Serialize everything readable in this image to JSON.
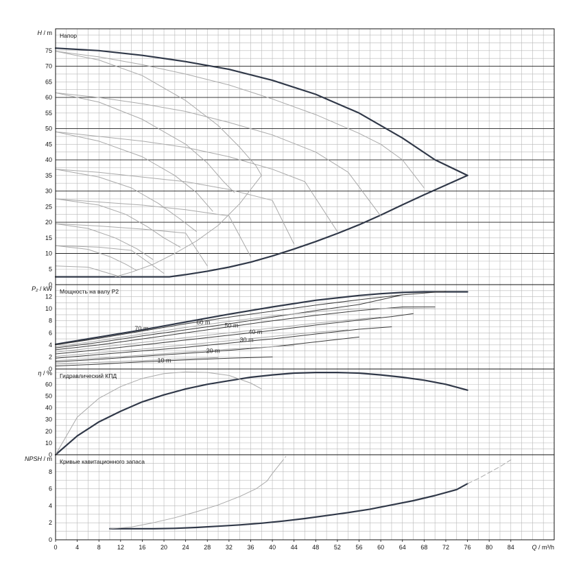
{
  "colors": {
    "grid": "#b8b8b8",
    "major": "#222222",
    "bold": "#303848",
    "thin": "#a9a9a9"
  },
  "chart_data": [
    {
      "id": "head",
      "type": "line",
      "title": "Напор",
      "ylabel_sym": "H",
      "ylabel_unit": "/ m",
      "ylim": [
        0,
        82
      ],
      "yticks": [
        0,
        5,
        10,
        15,
        20,
        25,
        30,
        35,
        40,
        45,
        50,
        55,
        60,
        65,
        70,
        75
      ],
      "major_y": [
        10,
        20,
        30,
        40,
        50,
        60,
        70
      ],
      "series": [
        {
          "style": "bold",
          "x": [
            0,
            8,
            16,
            24,
            32,
            40,
            48,
            56,
            64,
            70,
            76
          ],
          "y": [
            75.8,
            75,
            73.5,
            71.5,
            69,
            65.5,
            61,
            55,
            47,
            40,
            35
          ]
        },
        {
          "style": "bold",
          "x": [
            0,
            21,
            24,
            28,
            32,
            36,
            40,
            44,
            48,
            52,
            56,
            60,
            64,
            68,
            72,
            76
          ],
          "y": [
            2.5,
            2.5,
            3.2,
            4.3,
            5.6,
            7.2,
            9.2,
            11.4,
            13.8,
            16.4,
            19.2,
            22.3,
            25.6,
            28.8,
            31.9,
            35
          ]
        },
        {
          "style": "thin",
          "x": [
            0,
            8,
            16,
            24,
            32,
            40,
            48,
            56,
            60,
            64,
            68
          ],
          "y": [
            74.8,
            73,
            70.5,
            67.5,
            64,
            59.5,
            54.5,
            48.5,
            45,
            40,
            31
          ]
        },
        {
          "style": "thin",
          "x": [
            0,
            8,
            16,
            24,
            32,
            40,
            48,
            54,
            60
          ],
          "y": [
            61.5,
            60,
            58,
            55.5,
            52,
            48,
            42.5,
            36,
            22
          ]
        },
        {
          "style": "thin",
          "x": [
            0,
            8,
            16,
            24,
            32,
            40,
            46,
            52
          ],
          "y": [
            49,
            47.5,
            46,
            44,
            41,
            37,
            33,
            17
          ]
        },
        {
          "style": "thin",
          "x": [
            0,
            8,
            16,
            24,
            32,
            40,
            44
          ],
          "y": [
            37,
            36,
            34.5,
            33,
            30.5,
            27,
            13
          ]
        },
        {
          "style": "thin",
          "x": [
            0,
            8,
            16,
            24,
            32,
            36
          ],
          "y": [
            27.5,
            26.5,
            25.5,
            24,
            22,
            9
          ]
        },
        {
          "style": "thin",
          "x": [
            0,
            8,
            16,
            24,
            28
          ],
          "y": [
            19.5,
            18.8,
            17.8,
            16.5,
            6
          ]
        },
        {
          "style": "thin",
          "x": [
            0,
            8,
            14,
            20
          ],
          "y": [
            12.5,
            12,
            11,
            3.6
          ]
        },
        {
          "style": "thin",
          "x": [
            0,
            6,
            12
          ],
          "y": [
            6,
            5.6,
            2.5
          ]
        },
        {
          "style": "thin",
          "x": [
            0,
            8,
            16,
            24,
            30,
            34,
            37,
            38
          ],
          "y": [
            74.8,
            72,
            67,
            59,
            51,
            44,
            38,
            35
          ]
        },
        {
          "style": "thin",
          "x": [
            0,
            8,
            16,
            24,
            28,
            31,
            33
          ],
          "y": [
            61.5,
            58.5,
            53,
            45,
            39,
            33,
            29.5
          ]
        },
        {
          "style": "thin",
          "x": [
            0,
            8,
            16,
            22,
            26,
            29
          ],
          "y": [
            49,
            46,
            41,
            35,
            29.5,
            23.5
          ]
        },
        {
          "style": "thin",
          "x": [
            0,
            8,
            14,
            19,
            23,
            26
          ],
          "y": [
            37,
            34.5,
            31,
            26,
            21,
            17
          ]
        },
        {
          "style": "thin",
          "x": [
            0,
            8,
            13,
            17,
            20,
            23
          ],
          "y": [
            27.5,
            25.5,
            22.5,
            18.5,
            15,
            12
          ]
        },
        {
          "style": "thin",
          "x": [
            0,
            6,
            11,
            15,
            18
          ],
          "y": [
            19.5,
            18,
            15,
            11.5,
            8
          ]
        },
        {
          "style": "thin",
          "x": [
            0,
            6,
            10,
            13,
            15
          ],
          "y": [
            12.5,
            11.3,
            9,
            6.5,
            4.5
          ]
        },
        {
          "style": "thin",
          "x": [
            11,
            14,
            18,
            22,
            26,
            30,
            34,
            38
          ],
          "y": [
            2.5,
            4,
            6.5,
            10,
            14,
            19,
            26,
            35
          ]
        }
      ]
    },
    {
      "id": "power",
      "type": "line",
      "title": "Мощность на валу P2",
      "ylabel_sym": "P₂",
      "ylabel_unit": "/ kW",
      "ylim": [
        0,
        14
      ],
      "yticks": [
        0,
        2,
        4,
        6,
        8,
        10,
        12
      ],
      "major_y": [],
      "series": [
        {
          "style": "bold",
          "x": [
            0,
            8,
            16,
            24,
            32,
            40,
            48,
            56,
            60,
            64,
            68,
            72,
            76
          ],
          "y": [
            4.1,
            5.3,
            6.5,
            7.8,
            9.1,
            10.3,
            11.4,
            12.2,
            12.5,
            12.7,
            12.8,
            12.8,
            12.8
          ]
        },
        {
          "style": "dark",
          "x": [
            0,
            8,
            16,
            24,
            32,
            40,
            48,
            56,
            64,
            72
          ],
          "y": [
            4,
            5.1,
            6.3,
            7.5,
            8.6,
            9.6,
            10.6,
            11.5,
            12.3,
            12.9
          ]
        },
        {
          "style": "dark",
          "x": [
            0,
            8,
            16,
            24,
            32,
            40,
            48,
            56,
            64,
            70
          ],
          "y": [
            3.2,
            4,
            5,
            6,
            7,
            8,
            8.9,
            9.7,
            10.3,
            10.3
          ]
        },
        {
          "style": "dark",
          "x": [
            0,
            8,
            16,
            24,
            32,
            40,
            48,
            56,
            62,
            66
          ],
          "y": [
            2.5,
            3.2,
            4,
            4.8,
            5.6,
            6.4,
            7.3,
            8.1,
            8.7,
            9.2
          ]
        },
        {
          "style": "dark",
          "x": [
            0,
            8,
            16,
            24,
            32,
            40,
            48,
            56,
            62
          ],
          "y": [
            1.8,
            2.4,
            3,
            3.6,
            4.3,
            5,
            5.8,
            6.6,
            7
          ]
        },
        {
          "style": "dark",
          "x": [
            0,
            8,
            16,
            24,
            32,
            40,
            48,
            56
          ],
          "y": [
            1.2,
            1.6,
            2.1,
            2.6,
            3.1,
            3.7,
            4.5,
            5.3
          ]
        },
        {
          "style": "dark",
          "x": [
            0,
            8,
            16,
            24,
            32,
            40
          ],
          "y": [
            0.5,
            0.8,
            1.2,
            1.5,
            1.8,
            2
          ]
        },
        {
          "style": "dark",
          "x": [
            0,
            8,
            16,
            24,
            32,
            40,
            48,
            56,
            60,
            64
          ],
          "y": [
            3.5,
            4.4,
            5.5,
            6.5,
            7.5,
            8.6,
            9.7,
            10.7,
            11.5,
            12.3
          ]
        },
        {
          "style": "thin",
          "x": [
            0,
            8,
            16,
            24,
            32,
            40,
            48,
            56,
            64,
            70
          ],
          "y": [
            3.7,
            4.7,
            5.8,
            6.9,
            7.9,
            8.8,
            9.5,
            10,
            10.1,
            10
          ]
        },
        {
          "style": "thin",
          "x": [
            0,
            8,
            16,
            24,
            32,
            40,
            48,
            56,
            60
          ],
          "y": [
            2.8,
            3.6,
            4.4,
            5.2,
            6,
            6.8,
            7.6,
            8.3,
            8.6
          ]
        },
        {
          "style": "thin",
          "x": [
            0,
            8,
            16,
            24,
            32,
            40,
            48,
            54
          ],
          "y": [
            2.1,
            2.7,
            3.3,
            4,
            4.7,
            5.4,
            6.1,
            6.5
          ]
        },
        {
          "style": "thin",
          "x": [
            0,
            8,
            16,
            24,
            32,
            40,
            44
          ],
          "y": [
            1.4,
            1.8,
            2.3,
            2.8,
            3.3,
            3.7,
            3.9
          ]
        },
        {
          "style": "thin",
          "x": [
            0,
            8,
            16,
            24,
            30
          ],
          "y": [
            0.8,
            1.1,
            1.4,
            1.7,
            1.9
          ]
        }
      ],
      "labels": [
        {
          "text": "70 m",
          "x": 14.6,
          "y": 6.4
        },
        {
          "text": "60 m",
          "x": 26,
          "y": 7.4
        },
        {
          "text": "50 m",
          "x": 31.2,
          "y": 6.9
        },
        {
          "text": "40 m",
          "x": 35.6,
          "y": 5.8
        },
        {
          "text": "30 m",
          "x": 34,
          "y": 4.5
        },
        {
          "text": "20 m",
          "x": 27.8,
          "y": 2.7
        },
        {
          "text": "10 m",
          "x": 18.8,
          "y": 1.1
        }
      ]
    },
    {
      "id": "eff",
      "type": "line",
      "title": "Гидравлический КПД",
      "ylabel_sym": "η",
      "ylabel_unit": "/ %",
      "ylim": [
        0,
        73
      ],
      "yticks": [
        0,
        10,
        20,
        30,
        40,
        50,
        60
      ],
      "major_y": [],
      "series": [
        {
          "style": "bold",
          "x": [
            0,
            4,
            8,
            12,
            16,
            20,
            24,
            28,
            32,
            36,
            40,
            44,
            48,
            52,
            56,
            60,
            64,
            68,
            72,
            76
          ],
          "y": [
            0,
            16,
            28,
            37,
            45,
            51,
            56,
            60,
            63,
            66,
            68,
            69.5,
            70,
            70,
            69.5,
            68,
            66,
            63.5,
            60,
            55
          ]
        },
        {
          "style": "thin",
          "x": [
            0,
            4,
            8,
            12,
            16,
            20,
            24,
            28,
            32,
            36,
            38
          ],
          "y": [
            0,
            32,
            48,
            58,
            65,
            69,
            70.5,
            70,
            67.5,
            61,
            56
          ]
        }
      ]
    },
    {
      "id": "npsh",
      "type": "line",
      "title": "Кривые кавитационного запаса",
      "ylabel_sym": "NPSH",
      "ylabel_unit": "/ m",
      "ylim": [
        0,
        10
      ],
      "yticks": [
        0,
        2,
        4,
        6,
        8
      ],
      "major_y": [],
      "xlabel": "Q / m³/h",
      "xticks": [
        0,
        4,
        8,
        12,
        16,
        20,
        24,
        28,
        32,
        36,
        40,
        44,
        48,
        52,
        56,
        60,
        64,
        68,
        72,
        76,
        80,
        84
      ],
      "xlim": [
        0,
        92
      ],
      "series": [
        {
          "style": "bold",
          "x": [
            10,
            14,
            18,
            22,
            26,
            30,
            34,
            38,
            42,
            46,
            50,
            54,
            58,
            62,
            66,
            70,
            74,
            76
          ],
          "y": [
            1.3,
            1.3,
            1.3,
            1.35,
            1.45,
            1.6,
            1.75,
            1.95,
            2.2,
            2.5,
            2.85,
            3.2,
            3.6,
            4.1,
            4.6,
            5.2,
            5.9,
            6.6
          ]
        },
        {
          "style": "thin",
          "x": [
            10,
            14,
            18,
            22,
            26,
            30,
            34,
            37,
            39,
            40,
            41.5
          ],
          "y": [
            1.3,
            1.5,
            2,
            2.6,
            3.3,
            4.1,
            5.1,
            6,
            6.9,
            7.8,
            9
          ]
        },
        {
          "style": "dash",
          "x": [
            76,
            78,
            80,
            82,
            84
          ],
          "y": [
            6.6,
            7.2,
            7.9,
            8.6,
            9.4
          ]
        },
        {
          "style": "dash",
          "x": [
            41.5,
            42,
            42.5
          ],
          "y": [
            9,
            9.4,
            9.8
          ]
        }
      ]
    }
  ]
}
